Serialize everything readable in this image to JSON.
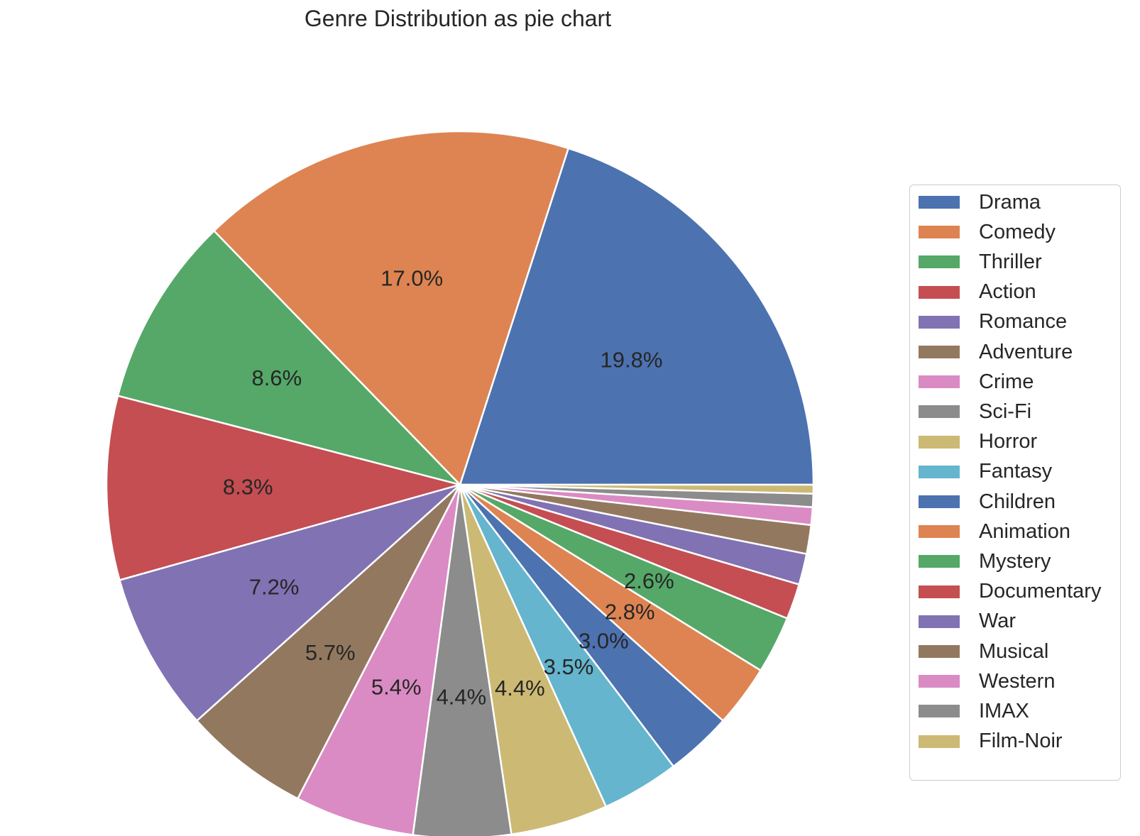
{
  "chart_data": {
    "type": "pie",
    "title": "Genre Distribution as pie chart",
    "labels": [
      "Drama",
      "Comedy",
      "Thriller",
      "Action",
      "Romance",
      "Adventure",
      "Crime",
      "Sci-Fi",
      "Horror",
      "Fantasy",
      "Children",
      "Animation",
      "Mystery",
      "Documentary",
      "War",
      "Musical",
      "Western",
      "IMAX",
      "Film-Noir"
    ],
    "values": [
      19.8,
      17.0,
      8.6,
      8.3,
      7.2,
      5.7,
      5.4,
      4.4,
      4.4,
      3.5,
      3.0,
      2.8,
      2.6,
      1.6,
      1.4,
      1.3,
      0.8,
      0.6,
      0.4
    ],
    "value_labels": [
      "19.8%",
      "17.0%",
      "8.6%",
      "8.3%",
      "7.2%",
      "5.7%",
      "5.4%",
      "4.4%",
      "4.4%",
      "3.5%",
      "3.0%",
      "2.8%",
      "2.6%",
      "",
      "",
      "",
      "",
      "",
      ""
    ],
    "colors": [
      "#4c72b0",
      "#dd8452",
      "#55a868",
      "#c44e52",
      "#8172b3",
      "#937860",
      "#da8bc3",
      "#8c8c8c",
      "#ccb974",
      "#64b5cd",
      "#4c72b0",
      "#dd8452",
      "#55a868",
      "#c44e52",
      "#8172b3",
      "#937860",
      "#da8bc3",
      "#8c8c8c",
      "#ccb974"
    ],
    "direction": "counterclockwise",
    "start": "right",
    "legend_position": "right"
  }
}
